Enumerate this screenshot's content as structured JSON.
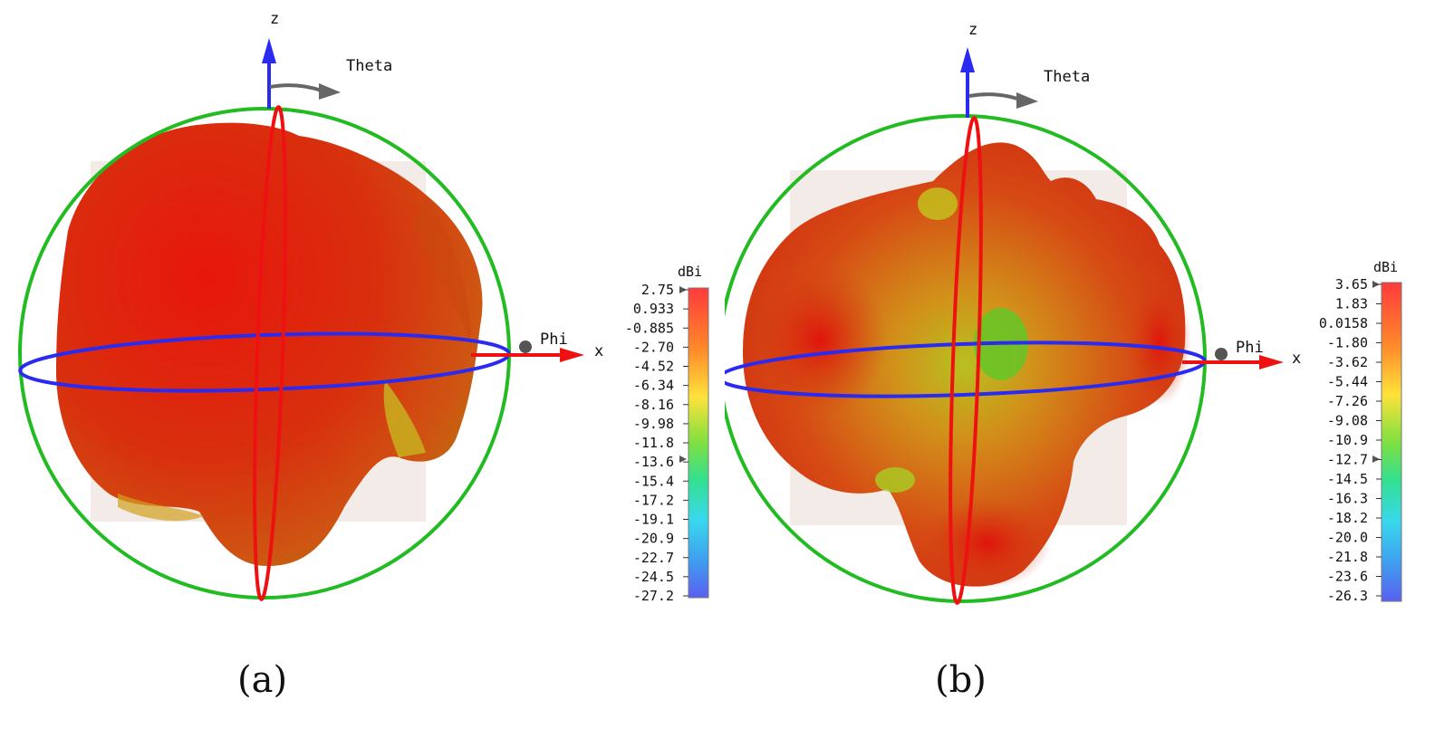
{
  "panels": [
    {
      "id": "a",
      "caption": "(a)",
      "axis_labels": {
        "z": "z",
        "x": "x",
        "theta": "Theta",
        "phi": "Phi"
      },
      "colorbar": {
        "unit": "dBi",
        "ticks": [
          "2.75",
          "0.933",
          "-0.885",
          "-2.70",
          "-4.52",
          "-6.34",
          "-8.16",
          "-9.98",
          "-11.8",
          "-13.6",
          "-15.4",
          "-17.2",
          "-19.1",
          "-20.9",
          "-22.7",
          "-24.5",
          "-27.2"
        ],
        "max_marker_value": "2.75",
        "min_marker_value": "-13.6"
      },
      "colors": {
        "surface": "#d93a12",
        "surface_dark": "#c01a0c"
      }
    },
    {
      "id": "b",
      "caption": "(b)",
      "axis_labels": {
        "z": "z",
        "x": "x",
        "theta": "Theta",
        "phi": "Phi"
      },
      "colorbar": {
        "unit": "dBi",
        "ticks": [
          "3.65",
          "1.83",
          "0.0158",
          "-1.80",
          "-3.62",
          "-5.44",
          "-7.26",
          "-9.08",
          "-10.9",
          "-12.7",
          "-14.5",
          "-16.3",
          "-18.2",
          "-20.0",
          "-21.8",
          "-23.6",
          "-26.3"
        ],
        "max_marker_value": "3.65",
        "min_marker_value": "-12.7"
      },
      "colors": {
        "surface": "#d24a14",
        "surface_dark": "#c81e10"
      }
    }
  ]
}
